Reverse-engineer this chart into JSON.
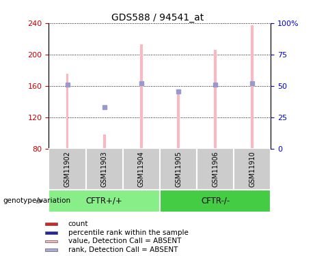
{
  "title": "GDS588 / 94541_at",
  "samples": [
    "GSM11902",
    "GSM11903",
    "GSM11904",
    "GSM11905",
    "GSM11906",
    "GSM11910"
  ],
  "bar_values": [
    175,
    98,
    213,
    152,
    206,
    237
  ],
  "rank_values": [
    161,
    133,
    163,
    153,
    161,
    163
  ],
  "ylim_left": [
    80,
    240
  ],
  "ylim_right": [
    0,
    100
  ],
  "yticks_left": [
    80,
    120,
    160,
    200,
    240
  ],
  "yticks_right": [
    0,
    25,
    50,
    75,
    100
  ],
  "yticklabels_right": [
    "0",
    "25",
    "50",
    "75",
    "100%"
  ],
  "bar_color": "#FFB6C1",
  "rank_color": "#9999CC",
  "left_tick_color": "#CC0000",
  "right_tick_color": "#0000CC",
  "genotype_label": "genotype/variation",
  "bar_bottom": 80,
  "bar_width": 0.07,
  "rank_marker_size": 5,
  "legend_colors": [
    "#DD2222",
    "#2222AA",
    "#FFB6C1",
    "#AAAADD"
  ],
  "legend_labels": [
    "count",
    "percentile rank within the sample",
    "value, Detection Call = ABSENT",
    "rank, Detection Call = ABSENT"
  ],
  "groups": [
    {
      "label": "CFTR+/+",
      "start": 0,
      "end": 2,
      "color": "#88EE88"
    },
    {
      "label": "CFTR-/-",
      "start": 3,
      "end": 5,
      "color": "#44CC44"
    }
  ],
  "cell_color": "#CCCCCC",
  "fig_width": 4.61,
  "fig_height": 3.75,
  "dpi": 100
}
